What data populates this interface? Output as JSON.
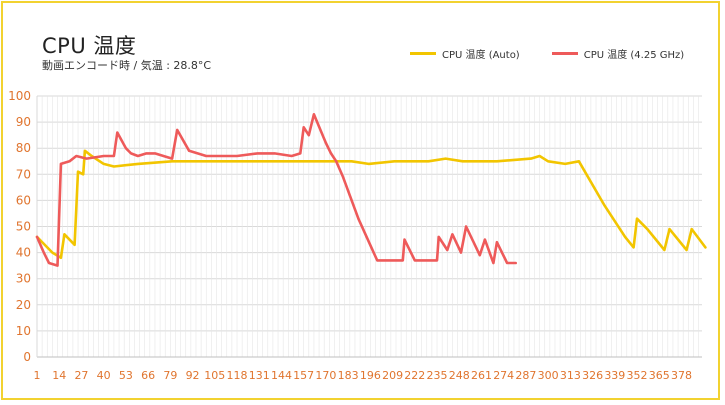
{
  "chart_data": {
    "type": "line",
    "title": "CPU 温度",
    "subtitle": "動画エンコード時 / 気温 : 28.8°C",
    "ylim": [
      0,
      100
    ],
    "y_ticks": [
      0,
      10,
      20,
      30,
      40,
      50,
      60,
      70,
      80,
      90,
      100
    ],
    "x_ticks": [
      "1",
      "14",
      "27",
      "40",
      "53",
      "66",
      "79",
      "92",
      "105",
      "118",
      "131",
      "144",
      "157",
      "170",
      "183",
      "196",
      "209",
      "222",
      "235",
      "248",
      "261",
      "274",
      "287",
      "300",
      "313",
      "326",
      "339",
      "352",
      "365",
      "378"
    ],
    "x_max": 390,
    "grid": true,
    "legend_position": "top-right",
    "series": [
      {
        "name": "CPU 温度 (Auto)",
        "color": "#f2c500",
        "points": [
          [
            1,
            46
          ],
          [
            10,
            40
          ],
          [
            15,
            38
          ],
          [
            17,
            47
          ],
          [
            23,
            43
          ],
          [
            25,
            71
          ],
          [
            28,
            70
          ],
          [
            29,
            79
          ],
          [
            33,
            77
          ],
          [
            40,
            74
          ],
          [
            46,
            73
          ],
          [
            60,
            74
          ],
          [
            80,
            75
          ],
          [
            100,
            75
          ],
          [
            120,
            75
          ],
          [
            150,
            75
          ],
          [
            170,
            75
          ],
          [
            185,
            75
          ],
          [
            195,
            74
          ],
          [
            210,
            75
          ],
          [
            230,
            75
          ],
          [
            240,
            76
          ],
          [
            250,
            75
          ],
          [
            270,
            75
          ],
          [
            290,
            76
          ],
          [
            295,
            77
          ],
          [
            300,
            75
          ],
          [
            310,
            74
          ],
          [
            318,
            75
          ],
          [
            333,
            58
          ],
          [
            345,
            46
          ],
          [
            350,
            42
          ],
          [
            352,
            53
          ],
          [
            358,
            49
          ],
          [
            368,
            41
          ],
          [
            371,
            49
          ],
          [
            381,
            41
          ],
          [
            384,
            49
          ],
          [
            392,
            42
          ]
        ]
      },
      {
        "name": "CPU 温度 (4.25 GHz)",
        "color": "#ee5a5a",
        "points": [
          [
            1,
            46
          ],
          [
            5,
            40
          ],
          [
            8,
            36
          ],
          [
            13,
            35
          ],
          [
            15,
            74
          ],
          [
            20,
            75
          ],
          [
            24,
            77
          ],
          [
            30,
            76
          ],
          [
            40,
            77
          ],
          [
            46,
            77
          ],
          [
            48,
            86
          ],
          [
            53,
            80
          ],
          [
            56,
            78
          ],
          [
            60,
            77
          ],
          [
            65,
            78
          ],
          [
            70,
            78
          ],
          [
            75,
            77
          ],
          [
            80,
            76
          ],
          [
            83,
            87
          ],
          [
            90,
            79
          ],
          [
            100,
            77
          ],
          [
            110,
            77
          ],
          [
            118,
            77
          ],
          [
            130,
            78
          ],
          [
            140,
            78
          ],
          [
            150,
            77
          ],
          [
            155,
            78
          ],
          [
            157,
            88
          ],
          [
            160,
            85
          ],
          [
            163,
            93
          ],
          [
            170,
            82
          ],
          [
            173,
            78
          ],
          [
            176,
            75
          ],
          [
            180,
            69
          ],
          [
            189,
            53
          ],
          [
            200,
            37
          ],
          [
            215,
            37
          ],
          [
            216,
            45
          ],
          [
            222,
            37
          ],
          [
            235,
            37
          ],
          [
            236,
            46
          ],
          [
            241,
            41
          ],
          [
            244,
            47
          ],
          [
            249,
            40
          ],
          [
            252,
            50
          ],
          [
            260,
            39
          ],
          [
            263,
            45
          ],
          [
            268,
            36
          ],
          [
            270,
            44
          ],
          [
            276,
            36
          ],
          [
            281,
            36
          ]
        ]
      }
    ]
  }
}
